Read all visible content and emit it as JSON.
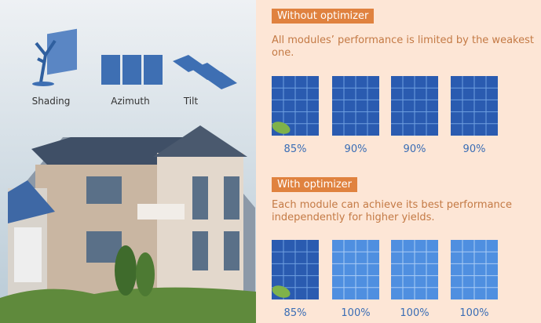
{
  "left": {
    "icons": [
      "Shading",
      "Azimuth",
      "Tilt"
    ]
  },
  "sections": [
    {
      "heading": "Without optimizer",
      "description": "All modules’ performance is limited by the weakest one.",
      "modules": [
        "85%",
        "90%",
        "90%",
        "90%"
      ]
    },
    {
      "heading": "With optimizer",
      "description": "Each module can achieve its best performance independently for higher yields.",
      "modules": [
        "85%",
        "100%",
        "100%",
        "100%"
      ]
    }
  ]
}
